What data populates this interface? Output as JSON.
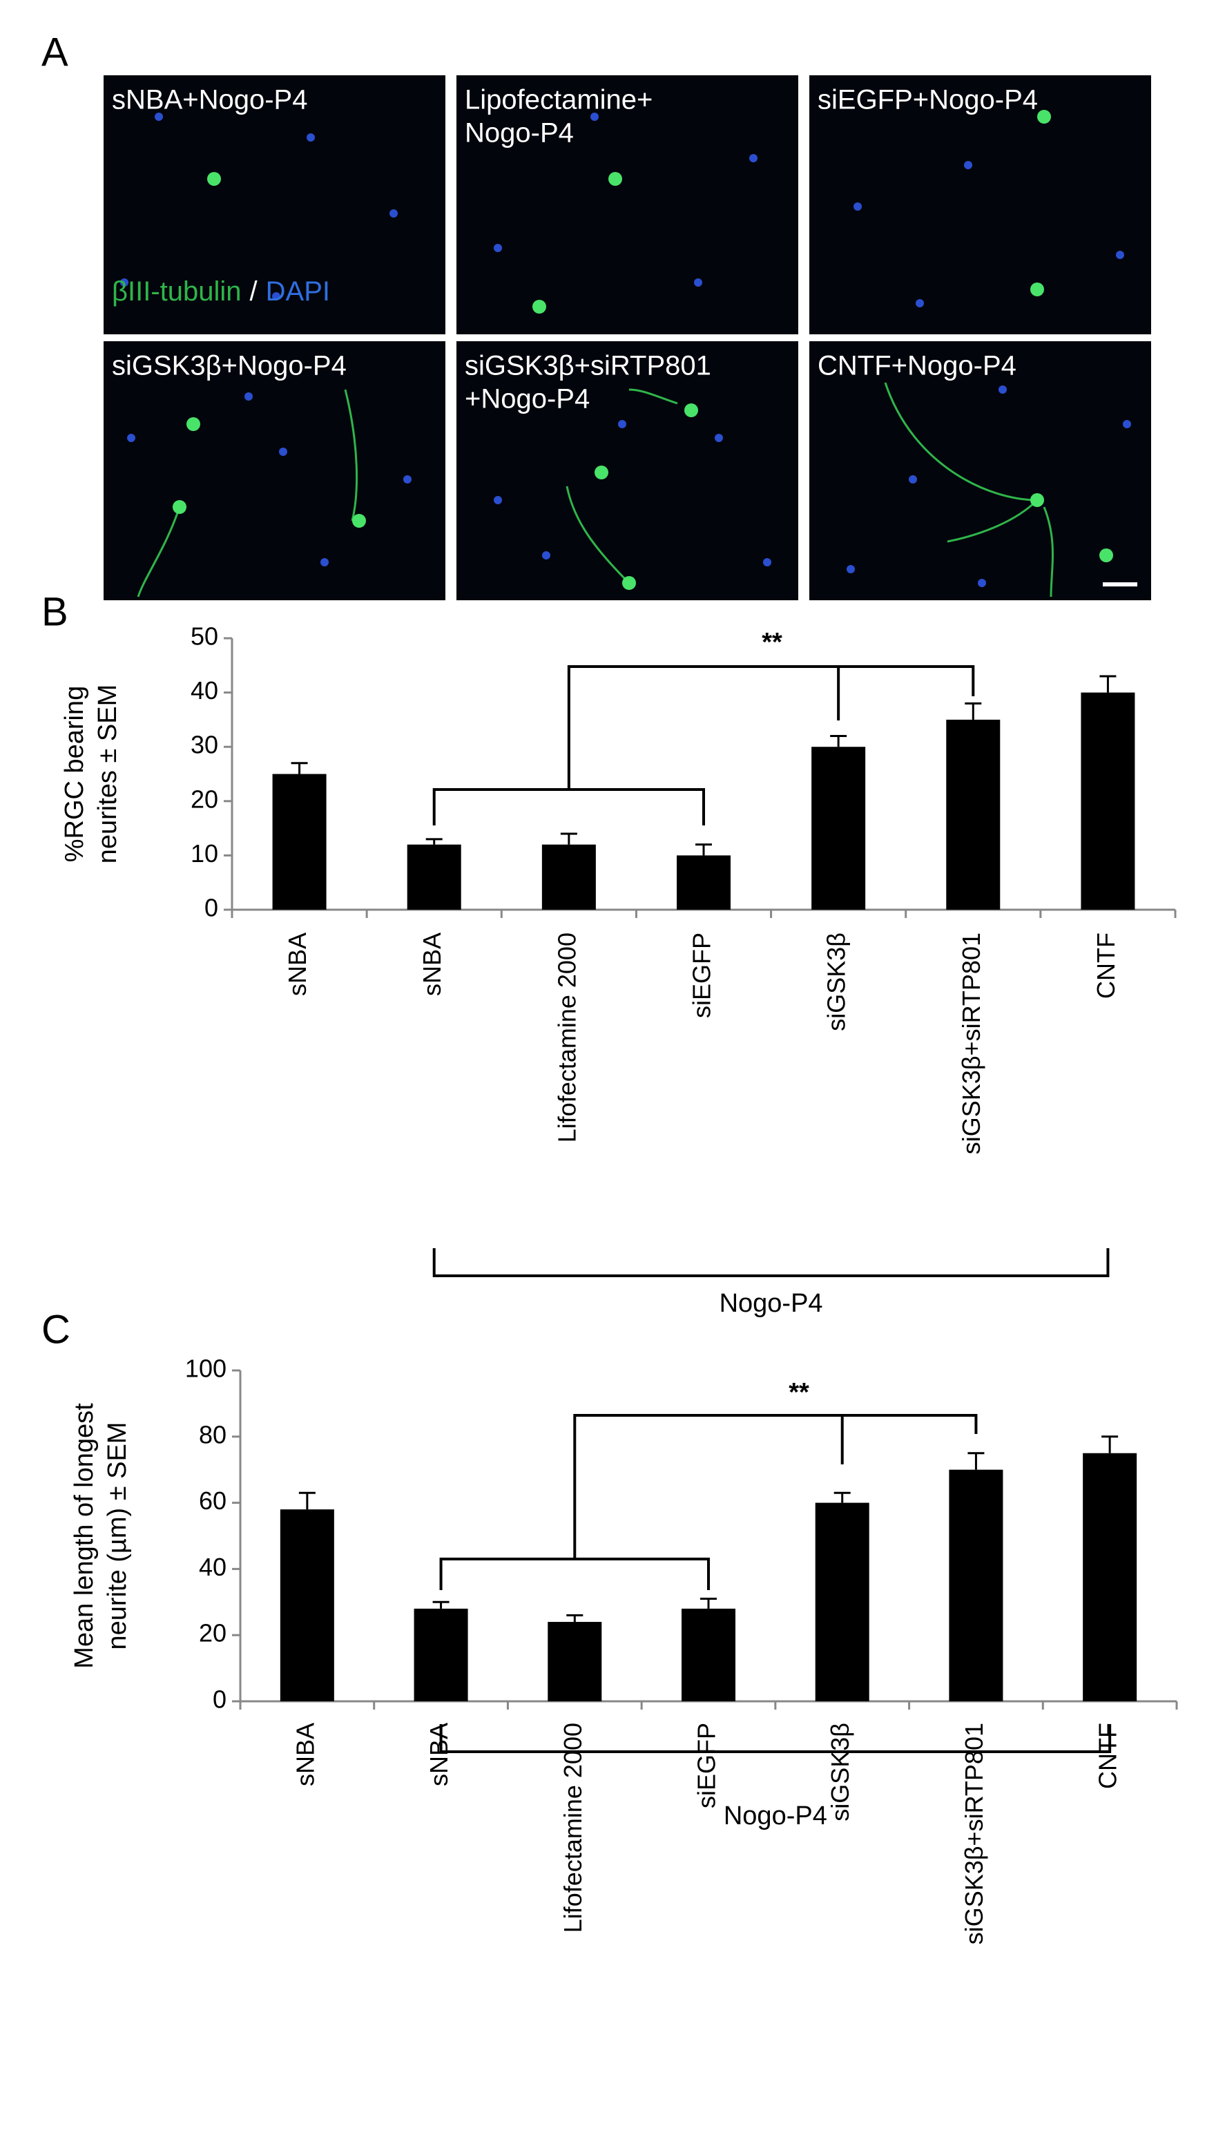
{
  "panel_a": {
    "panel": "A",
    "images": [
      {
        "label": [
          "sNBA+Nogo-P4"
        ]
      },
      {
        "label": [
          "Lipofectamine+",
          "Nogo-P4"
        ]
      },
      {
        "label": [
          "siEGFP+Nogo-P4"
        ]
      },
      {
        "label": [
          "siGSK3β+Nogo-P4"
        ]
      },
      {
        "label": [
          "siGSK3β+siRTP801",
          "+Nogo-P4"
        ]
      },
      {
        "label": [
          "CNTF+Nogo-P4"
        ]
      }
    ],
    "stain_legend": {
      "marker": "βIII-tubulin",
      "separator": "/",
      "nucleus": "DAPI"
    }
  },
  "chart_data": [
    {
      "type": "bar",
      "panel": "B",
      "y_label": [
        "%RGC bearing",
        "neurites ± SEM"
      ],
      "categories": [
        "sNBA",
        "sNBA",
        "Lifofectamine 2000",
        "siEGFP",
        "siGSK3β",
        "siGSK3β+siRTP801",
        "CNTF"
      ],
      "values": [
        25,
        12,
        12,
        10,
        30,
        35,
        40
      ],
      "errors": [
        2,
        1,
        2,
        2,
        2,
        3,
        3
      ],
      "color": "#000000",
      "ylim": [
        0,
        50
      ],
      "yticks": [
        0,
        10,
        20,
        30,
        40,
        50
      ],
      "annotation": "**",
      "group_label": "Nogo-P4"
    },
    {
      "type": "bar",
      "panel": "C",
      "y_label": [
        "Mean length of longest",
        "neurite (µm) ± SEM"
      ],
      "categories": [
        "sNBA",
        "sNBA",
        "Lifofectamine 2000",
        "siEGFP",
        "siGSK3β",
        "siGSK3β+siRTP801",
        "CNTF"
      ],
      "values": [
        58,
        28,
        24,
        28,
        60,
        70,
        75
      ],
      "errors": [
        5,
        2,
        2,
        3,
        3,
        5,
        5
      ],
      "color": "#000000",
      "ylim": [
        0,
        100
      ],
      "yticks": [
        0,
        20,
        40,
        60,
        80,
        100
      ],
      "annotation": "**",
      "group_label": "Nogo-P4"
    }
  ]
}
